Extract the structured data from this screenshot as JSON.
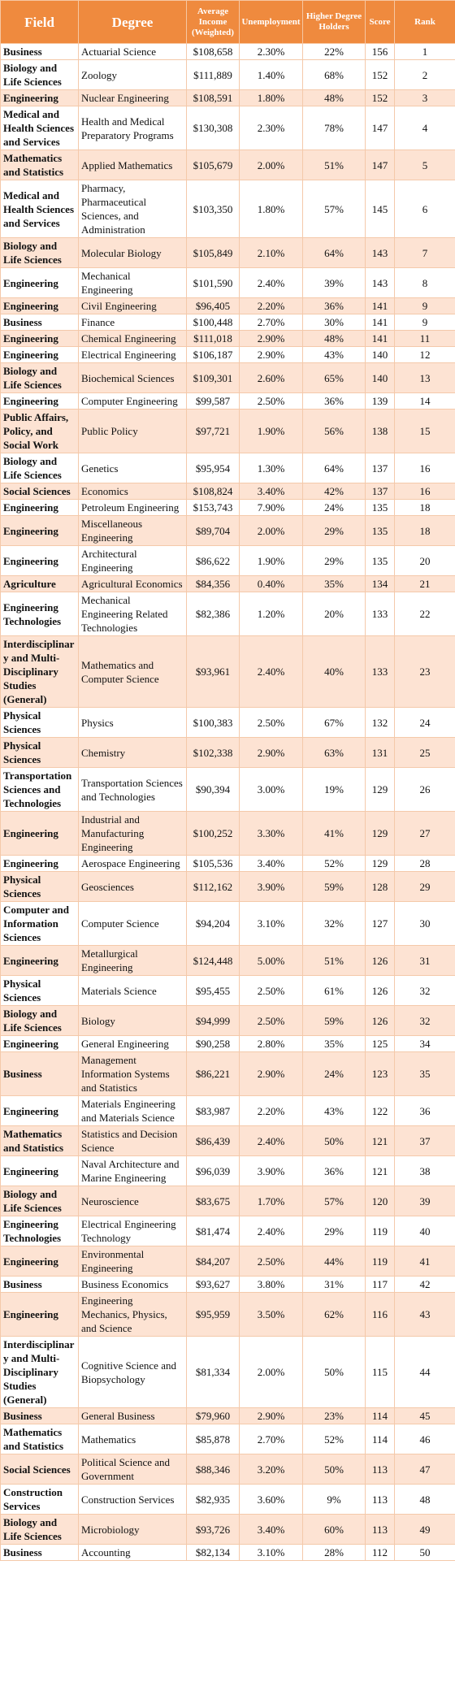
{
  "table": {
    "header": [
      "Field",
      "Degree",
      "Average Income (Weighted)",
      "Unemployment",
      "Higher Degree Holders",
      "Score",
      "Rank"
    ],
    "rows": [
      [
        "Business",
        "Actuarial Science",
        "$108,658",
        "2.30%",
        "22%",
        156,
        1
      ],
      [
        "Biology and Life Sciences",
        "Zoology",
        "$111,889",
        "1.40%",
        "68%",
        152,
        2
      ],
      [
        "Engineering",
        "Nuclear Engineering",
        "$108,591",
        "1.80%",
        "48%",
        152,
        3
      ],
      [
        "Medical and Health Sciences and Services",
        "Health and Medical Preparatory Programs",
        "$130,308",
        "2.30%",
        "78%",
        147,
        4
      ],
      [
        "Mathematics and Statistics",
        "Applied Mathematics",
        "$105,679",
        "2.00%",
        "51%",
        147,
        5
      ],
      [
        "Medical and Health Sciences and Services",
        "Pharmacy, Pharmaceutical Sciences, and Administration",
        "$103,350",
        "1.80%",
        "57%",
        145,
        6
      ],
      [
        "Biology and Life Sciences",
        "Molecular Biology",
        "$105,849",
        "2.10%",
        "64%",
        143,
        7
      ],
      [
        "Engineering",
        "Mechanical Engineering",
        "$101,590",
        "2.40%",
        "39%",
        143,
        8
      ],
      [
        "Engineering",
        "Civil Engineering",
        "$96,405",
        "2.20%",
        "36%",
        141,
        9
      ],
      [
        "Business",
        "Finance",
        "$100,448",
        "2.70%",
        "30%",
        141,
        9
      ],
      [
        "Engineering",
        "Chemical Engineering",
        "$111,018",
        "2.90%",
        "48%",
        141,
        11
      ],
      [
        "Engineering",
        "Electrical Engineering",
        "$106,187",
        "2.90%",
        "43%",
        140,
        12
      ],
      [
        "Biology and Life Sciences",
        "Biochemical Sciences",
        "$109,301",
        "2.60%",
        "65%",
        140,
        13
      ],
      [
        "Engineering",
        "Computer Engineering",
        "$99,587",
        "2.50%",
        "36%",
        139,
        14
      ],
      [
        "Public Affairs, Policy, and Social Work",
        "Public Policy",
        "$97,721",
        "1.90%",
        "56%",
        138,
        15
      ],
      [
        "Biology and Life Sciences",
        "Genetics",
        "$95,954",
        "1.30%",
        "64%",
        137,
        16
      ],
      [
        "Social Sciences",
        "Economics",
        "$108,824",
        "3.40%",
        "42%",
        137,
        16
      ],
      [
        "Engineering",
        "Petroleum Engineering",
        "$153,743",
        "7.90%",
        "24%",
        135,
        18
      ],
      [
        "Engineering",
        "Miscellaneous Engineering",
        "$89,704",
        "2.00%",
        "29%",
        135,
        18
      ],
      [
        "Engineering",
        "Architectural Engineering",
        "$86,622",
        "1.90%",
        "29%",
        135,
        20
      ],
      [
        "Agriculture",
        "Agricultural Economics",
        "$84,356",
        "0.40%",
        "35%",
        134,
        21
      ],
      [
        "Engineering Technologies",
        "Mechanical Engineering Related Technologies",
        "$82,386",
        "1.20%",
        "20%",
        133,
        22
      ],
      [
        "Interdisciplinary and Multi-Disciplinary Studies (General)",
        "Mathematics and Computer Science",
        "$93,961",
        "2.40%",
        "40%",
        133,
        23
      ],
      [
        "Physical Sciences",
        "Physics",
        "$100,383",
        "2.50%",
        "67%",
        132,
        24
      ],
      [
        "Physical Sciences",
        "Chemistry",
        "$102,338",
        "2.90%",
        "63%",
        131,
        25
      ],
      [
        "Transportation Sciences and Technologies",
        "Transportation Sciences and Technologies",
        "$90,394",
        "3.00%",
        "19%",
        129,
        26
      ],
      [
        "Engineering",
        "Industrial and Manufacturing Engineering",
        "$100,252",
        "3.30%",
        "41%",
        129,
        27
      ],
      [
        "Engineering",
        "Aerospace Engineering",
        "$105,536",
        "3.40%",
        "52%",
        129,
        28
      ],
      [
        "Physical Sciences",
        "Geosciences",
        "$112,162",
        "3.90%",
        "59%",
        128,
        29
      ],
      [
        "Computer and Information Sciences",
        "Computer Science",
        "$94,204",
        "3.10%",
        "32%",
        127,
        30
      ],
      [
        "Engineering",
        "Metallurgical Engineering",
        "$124,448",
        "5.00%",
        "51%",
        126,
        31
      ],
      [
        "Physical Sciences",
        "Materials Science",
        "$95,455",
        "2.50%",
        "61%",
        126,
        32
      ],
      [
        "Biology and Life Sciences",
        "Biology",
        "$94,999",
        "2.50%",
        "59%",
        126,
        32
      ],
      [
        "Engineering",
        "General Engineering",
        "$90,258",
        "2.80%",
        "35%",
        125,
        34
      ],
      [
        "Business",
        "Management Information Systems and Statistics",
        "$86,221",
        "2.90%",
        "24%",
        123,
        35
      ],
      [
        "Engineering",
        "Materials Engineering and Materials Science",
        "$83,987",
        "2.20%",
        "43%",
        122,
        36
      ],
      [
        "Mathematics and Statistics",
        "Statistics and Decision Science",
        "$86,439",
        "2.40%",
        "50%",
        121,
        37
      ],
      [
        "Engineering",
        "Naval Architecture and Marine Engineering",
        "$96,039",
        "3.90%",
        "36%",
        121,
        38
      ],
      [
        "Biology and Life Sciences",
        "Neuroscience",
        "$83,675",
        "1.70%",
        "57%",
        120,
        39
      ],
      [
        "Engineering Technologies",
        "Electrical Engineering Technology",
        "$81,474",
        "2.40%",
        "29%",
        119,
        40
      ],
      [
        "Engineering",
        "Environmental Engineering",
        "$84,207",
        "2.50%",
        "44%",
        119,
        41
      ],
      [
        "Business",
        "Business Economics",
        "$93,627",
        "3.80%",
        "31%",
        117,
        42
      ],
      [
        "Engineering",
        "Engineering Mechanics, Physics, and Science",
        "$95,959",
        "3.50%",
        "62%",
        116,
        43
      ],
      [
        "Interdisciplinary and Multi-Disciplinary Studies (General)",
        "Cognitive Science and Biopsychology",
        "$81,334",
        "2.00%",
        "50%",
        115,
        44
      ],
      [
        "Business",
        "General Business",
        "$79,960",
        "2.90%",
        "23%",
        114,
        45
      ],
      [
        "Mathematics and Statistics",
        "Mathematics",
        "$85,878",
        "2.70%",
        "52%",
        114,
        46
      ],
      [
        "Social Sciences",
        "Political Science and Government",
        "$88,346",
        "3.20%",
        "50%",
        113,
        47
      ],
      [
        "Construction Services",
        "Construction Services",
        "$82,935",
        "3.60%",
        "9%",
        113,
        48
      ],
      [
        "Biology and Life Sciences",
        "Microbiology",
        "$93,726",
        "3.40%",
        "60%",
        113,
        49
      ],
      [
        "Business",
        "Accounting",
        "$82,134",
        "3.10%",
        "28%",
        112,
        50
      ]
    ]
  }
}
